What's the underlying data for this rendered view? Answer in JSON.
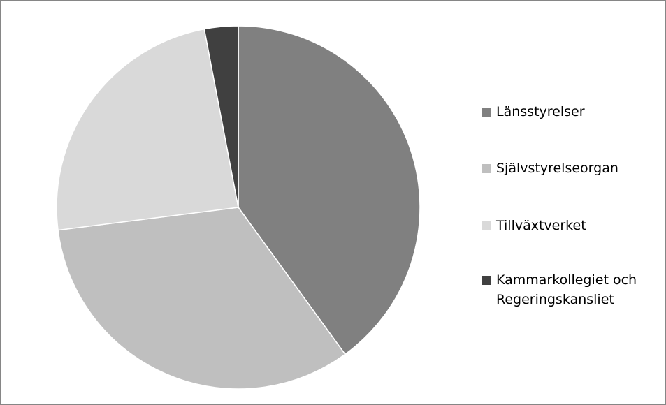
{
  "chart_data": {
    "type": "pie",
    "categories": [
      "Länsstyrelser",
      "Självstyrelseorgan",
      "Tillväxtverket",
      "Kammarkollegiet och Regeringskansliet"
    ],
    "values": [
      40,
      33,
      24,
      3
    ],
    "colors": [
      "#808080",
      "#bfbfbf",
      "#d9d9d9",
      "#404040"
    ],
    "legend": "right"
  }
}
